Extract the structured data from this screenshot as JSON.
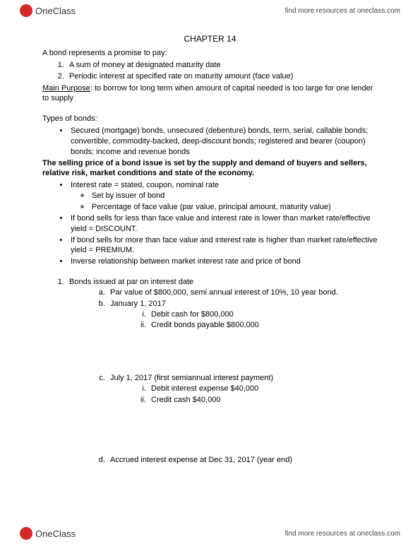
{
  "brand": {
    "name": "OneClass",
    "link_text": "find more resources at oneclass.com"
  },
  "title": "CHAPTER 14",
  "intro": {
    "lead": "A bond represents a promise to pay:",
    "items": [
      "A sum of money at designated maturity date",
      "Periodic interest at specified rate on maturity amount (face value)"
    ],
    "purpose_label": "Main Purpose",
    "purpose_text": ": to borrow for long term when amount of capital needed is too large for one lender to supply"
  },
  "types": {
    "heading": "Types of bonds:",
    "bullet": "Secured (mortgage) bonds, unsecured (debenture) bonds, term, serial, callable bonds; convertible, commodity-backed, deep-discount bonds; registered and bearer (coupon) bonds; income and revenue bonds",
    "bold_line": "The selling price of a bond issue is set by the supply and demand of buyers and sellers, relative risk, market conditions and state of the economy.",
    "rate_line": "Interest rate = stated, coupon, nominal rate",
    "rate_sub1": "Set by issuer of bond",
    "rate_sub2": "Percentage of face value (par value, principal amount, maturity value)",
    "discount": "If bond sells for less than face value and interest rate is lower than market rate/effective yield = DISCOUNT.",
    "premium": "If bond sells for more than face value and interest rate is higher than market rate/effective yield = PREMIUM.",
    "inverse": "Inverse relationship between market interest rate and price of bond"
  },
  "example": {
    "num_heading": "Bonds issued at par on interest date",
    "a": "Par value of $800,000, semi annual interest of 10%, 10 year bond.",
    "b": "January 1, 2017",
    "b_i": "Debit cash for $800,000",
    "b_ii": "Credit bonds payable $800,000",
    "c": "July 1, 2017 (first semiannual interest payment)",
    "c_i": "Debit interest expense $40,000",
    "c_ii": "Credit cash $40,000",
    "d": "Accrued interest expense at Dec 31, 2017 (year end)"
  }
}
